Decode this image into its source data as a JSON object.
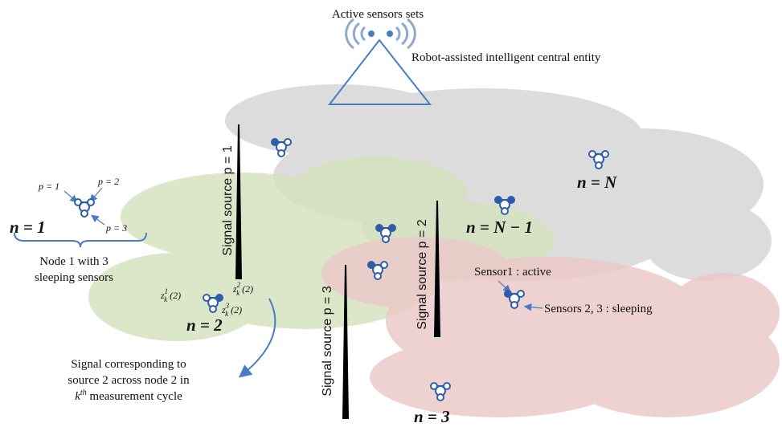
{
  "header": {
    "top_label": "Active sensors sets",
    "central_entity": "Robot-assisted intelligent central entity"
  },
  "sources": [
    {
      "label": "Signal source p = 1"
    },
    {
      "label": "Signal source p = 2"
    },
    {
      "label": "Signal source p = 3"
    }
  ],
  "nodes": [
    {
      "label": "n = N"
    },
    {
      "label": "n = N − 1"
    },
    {
      "label": "n = 1"
    },
    {
      "label": "n = 2"
    },
    {
      "label": "n = 3"
    }
  ],
  "node1_detail": {
    "sensor_labels": [
      "p = 1",
      "p = 2",
      "p = 3"
    ],
    "caption": [
      "Node 1 with 3",
      "sleeping sensors"
    ]
  },
  "node2_detail": {
    "signals": [
      {
        "base": "z",
        "sub": "k",
        "sup": "1",
        "arg": " (2)"
      },
      {
        "base": "z",
        "sub": "k",
        "sup": "2",
        "arg": " (2)"
      },
      {
        "base": "z",
        "sub": "k",
        "sup": "3",
        "arg": " (2)"
      }
    ],
    "caption": {
      "line1": "Signal corresponding to",
      "line2": "source 2 across node 2 in",
      "line3_base": "k",
      "line3_sup": "th",
      "line3_rest": " measurement cycle"
    }
  },
  "node_states": {
    "active": "Sensor1 : active",
    "sleeping": "Sensors 2, 3 : sleeping"
  }
}
